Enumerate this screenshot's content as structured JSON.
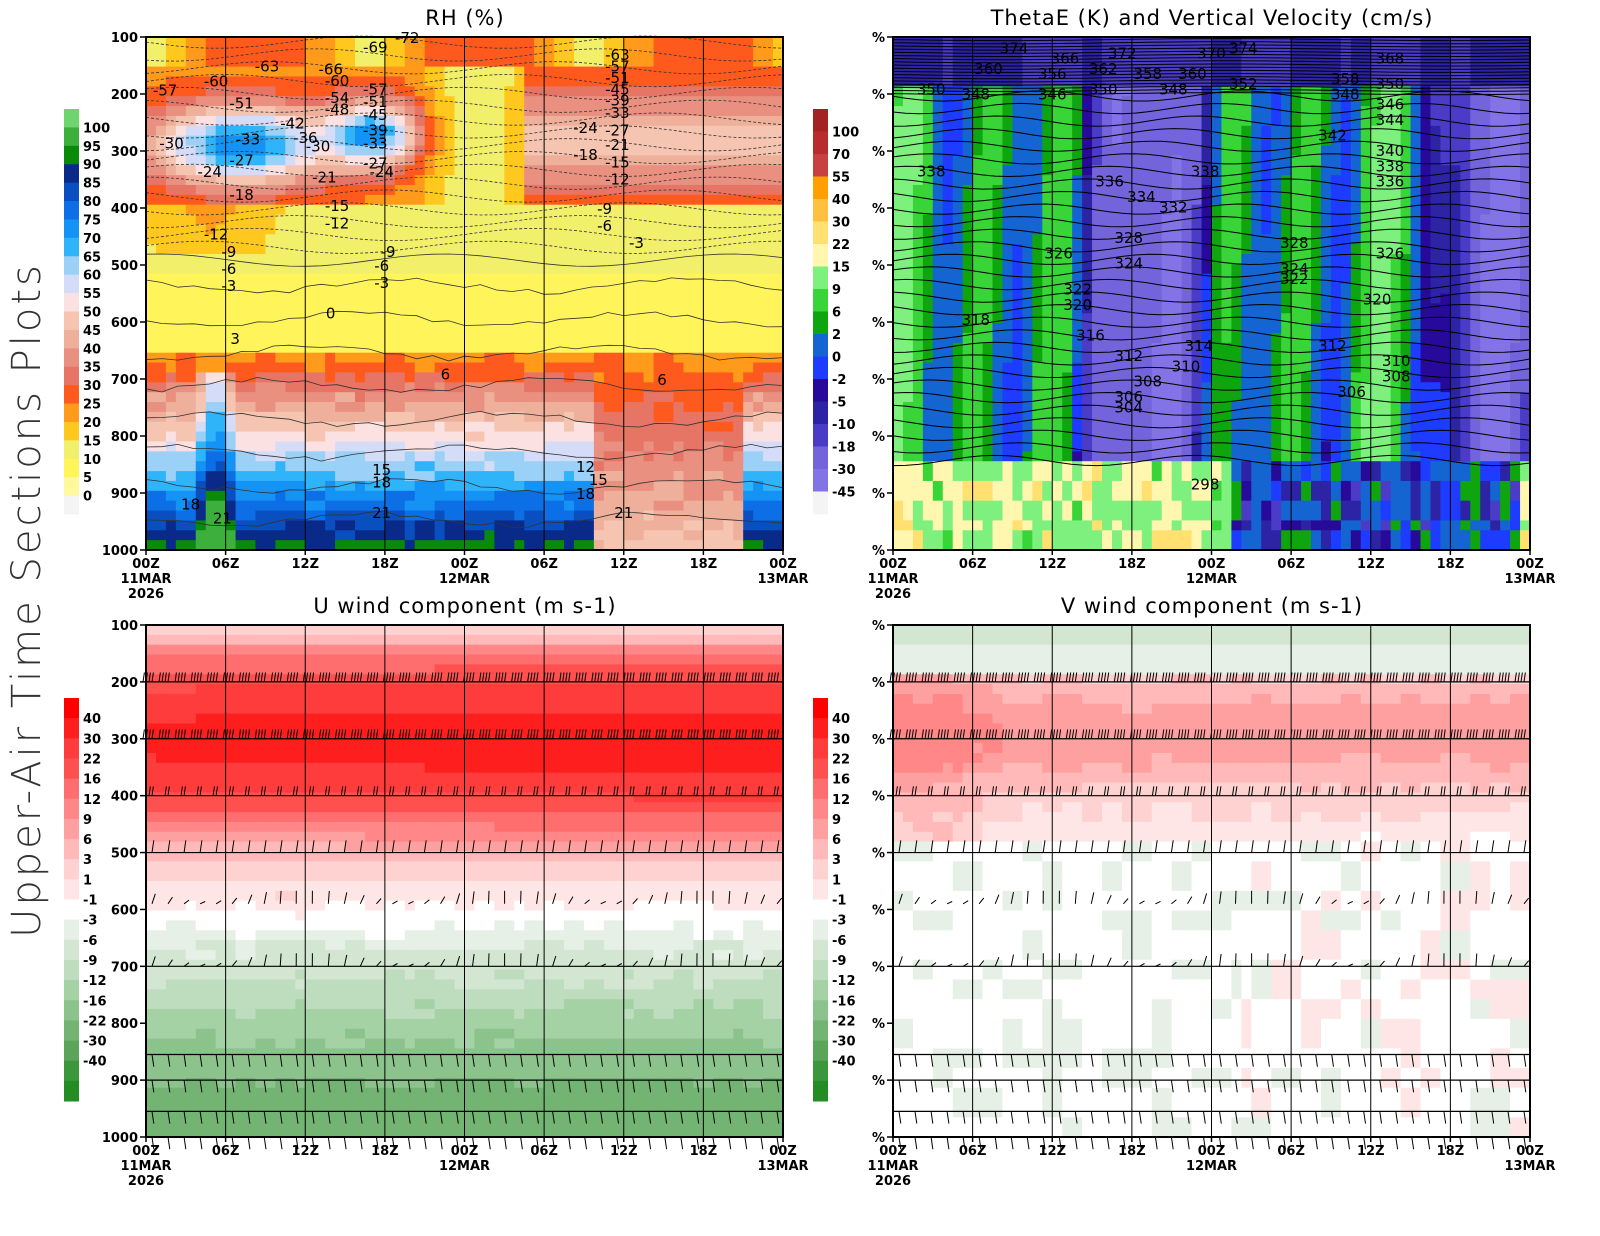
{
  "page": {
    "side_title": "Upper-Air Time Sections Plots"
  },
  "chart_data": [
    {
      "id": "rh",
      "type": "heatmap",
      "title": "RH (%)",
      "xlabel": "",
      "ylabel": "",
      "y_axis": {
        "ticks": [
          "100",
          "200",
          "300",
          "400",
          "500",
          "600",
          "700",
          "800",
          "900",
          "1000"
        ],
        "ylim": [
          100,
          1000
        ],
        "inverted": true
      },
      "x_axis": {
        "ticks": [
          "00Z",
          "06Z",
          "12Z",
          "18Z",
          "00Z",
          "06Z",
          "12Z",
          "18Z",
          "00Z"
        ],
        "date_labels": [
          {
            "at": 0,
            "text": "11MAR"
          },
          {
            "at": 4,
            "text": "12MAR"
          },
          {
            "at": 8,
            "text": "13MAR"
          }
        ],
        "year_label": "2026"
      },
      "colorbar": {
        "levels": [
          "100",
          "95",
          "90",
          "85",
          "80",
          "75",
          "70",
          "65",
          "60",
          "55",
          "50",
          "45",
          "40",
          "35",
          "30",
          "25",
          "20",
          "15",
          "10",
          "5",
          "0"
        ],
        "colors": [
          "#6ed46e",
          "#3daf3d",
          "#0a8a0a",
          "#0a2a8a",
          "#0a4fbf",
          "#0d6fe6",
          "#1493f5",
          "#2fb4fa",
          "#9bd0f7",
          "#d5dcf7",
          "#fbe1e1",
          "#f5c5b2",
          "#eeb09a",
          "#e99080",
          "#e67566",
          "#ff5a1e",
          "#ff9a1a",
          "#ffc81f",
          "#f2ef6a",
          "#fff45a",
          "#fff89c",
          "#f4f4f4"
        ]
      },
      "contour_overlay": "temperature (C)",
      "contour_labels": [
        {
          "t": 0.03,
          "p": 192,
          "v": "-57"
        },
        {
          "t": 0.11,
          "p": 176,
          "v": "-60"
        },
        {
          "t": 0.19,
          "p": 150,
          "v": "-63"
        },
        {
          "t": 0.15,
          "p": 215,
          "v": "-51"
        },
        {
          "t": 0.04,
          "p": 285,
          "v": "-30"
        },
        {
          "t": 0.16,
          "p": 278,
          "v": "-33"
        },
        {
          "t": 0.23,
          "p": 250,
          "v": "-42"
        },
        {
          "t": 0.15,
          "p": 315,
          "v": "-27"
        },
        {
          "t": 0.1,
          "p": 335,
          "v": "-24"
        },
        {
          "t": 0.15,
          "p": 375,
          "v": "-18"
        },
        {
          "t": 0.11,
          "p": 445,
          "v": "-12"
        },
        {
          "t": 0.13,
          "p": 475,
          "v": "-9"
        },
        {
          "t": 0.13,
          "p": 505,
          "v": "-6"
        },
        {
          "t": 0.13,
          "p": 535,
          "v": "-3"
        },
        {
          "t": 0.29,
          "p": 155,
          "v": "-66"
        },
        {
          "t": 0.36,
          "p": 117,
          "v": "-69"
        },
        {
          "t": 0.3,
          "p": 175,
          "v": "-60"
        },
        {
          "t": 0.3,
          "p": 205,
          "v": "-54"
        },
        {
          "t": 0.3,
          "p": 225,
          "v": "-48"
        },
        {
          "t": 0.36,
          "p": 190,
          "v": "-57"
        },
        {
          "t": 0.36,
          "p": 212,
          "v": "-51"
        },
        {
          "t": 0.36,
          "p": 235,
          "v": "-45"
        },
        {
          "t": 0.36,
          "p": 262,
          "v": "-39"
        },
        {
          "t": 0.36,
          "p": 285,
          "v": "-33"
        },
        {
          "t": 0.36,
          "p": 320,
          "v": "-27"
        },
        {
          "t": 0.25,
          "p": 275,
          "v": "-36"
        },
        {
          "t": 0.27,
          "p": 290,
          "v": "-30"
        },
        {
          "t": 0.28,
          "p": 345,
          "v": "-21"
        },
        {
          "t": 0.37,
          "p": 335,
          "v": "-24"
        },
        {
          "t": 0.3,
          "p": 395,
          "v": "-15"
        },
        {
          "t": 0.3,
          "p": 425,
          "v": "-12"
        },
        {
          "t": 0.38,
          "p": 475,
          "v": "-9"
        },
        {
          "t": 0.37,
          "p": 500,
          "v": "-6"
        },
        {
          "t": 0.37,
          "p": 530,
          "v": "-3"
        },
        {
          "t": 0.41,
          "p": 100,
          "v": "-72"
        },
        {
          "t": 0.29,
          "p": 583,
          "v": "0"
        },
        {
          "t": 0.14,
          "p": 628,
          "v": "3"
        },
        {
          "t": 0.47,
          "p": 690,
          "v": "6"
        },
        {
          "t": 0.81,
          "p": 700,
          "v": "6"
        },
        {
          "t": 0.37,
          "p": 858,
          "v": "15"
        },
        {
          "t": 0.37,
          "p": 880,
          "v": "18"
        },
        {
          "t": 0.37,
          "p": 933,
          "v": "21"
        },
        {
          "t": 0.07,
          "p": 918,
          "v": "18"
        },
        {
          "t": 0.12,
          "p": 943,
          "v": "21"
        },
        {
          "t": 0.69,
          "p": 853,
          "v": "12"
        },
        {
          "t": 0.71,
          "p": 875,
          "v": "15"
        },
        {
          "t": 0.69,
          "p": 900,
          "v": "18"
        },
        {
          "t": 0.75,
          "p": 933,
          "v": "21"
        },
        {
          "t": 0.74,
          "p": 130,
          "v": "-63"
        },
        {
          "t": 0.74,
          "p": 150,
          "v": "-57"
        },
        {
          "t": 0.74,
          "p": 170,
          "v": "-51"
        },
        {
          "t": 0.74,
          "p": 190,
          "v": "-45"
        },
        {
          "t": 0.74,
          "p": 210,
          "v": "-39"
        },
        {
          "t": 0.74,
          "p": 232,
          "v": "-33"
        },
        {
          "t": 0.74,
          "p": 262,
          "v": "-27"
        },
        {
          "t": 0.69,
          "p": 258,
          "v": "-24"
        },
        {
          "t": 0.74,
          "p": 288,
          "v": "-21"
        },
        {
          "t": 0.69,
          "p": 305,
          "v": "-18"
        },
        {
          "t": 0.74,
          "p": 318,
          "v": "-15"
        },
        {
          "t": 0.74,
          "p": 348,
          "v": "-12"
        },
        {
          "t": 0.72,
          "p": 400,
          "v": "-9"
        },
        {
          "t": 0.72,
          "p": 430,
          "v": "-6"
        },
        {
          "t": 0.77,
          "p": 460,
          "v": "-3"
        }
      ]
    },
    {
      "id": "thetae",
      "type": "heatmap",
      "title": "ThetaE (K) and Vertical Velocity (cm/s)",
      "xlabel": "",
      "ylabel": "",
      "y_axis": {
        "ticks": [
          "%",
          "%",
          "%",
          "%",
          "%",
          "%",
          "%",
          "%",
          "%",
          "%"
        ],
        "inverted": true
      },
      "x_axis": {
        "ticks": [
          "00Z",
          "06Z",
          "12Z",
          "18Z",
          "00Z",
          "06Z",
          "12Z",
          "18Z",
          "00Z"
        ],
        "date_labels": [
          {
            "at": 0,
            "text": "11MAR"
          },
          {
            "at": 4,
            "text": "12MAR"
          },
          {
            "at": 8,
            "text": "13MAR"
          }
        ],
        "year_label": "2026"
      },
      "colorbar": {
        "levels": [
          "100",
          "70",
          "55",
          "40",
          "30",
          "22",
          "15",
          "9",
          "6",
          "2",
          "0",
          "-2",
          "-5",
          "-10",
          "-18",
          "-30",
          "-45"
        ],
        "colors": [
          "#a52222",
          "#b82c2c",
          "#c94040",
          "#ff9f00",
          "#ffc040",
          "#ffe070",
          "#fff6b0",
          "#7ef07e",
          "#38d438",
          "#0fa50f",
          "#1464d2",
          "#1e3cff",
          "#280a9b",
          "#2d23a5",
          "#4b3cc8",
          "#7364dc",
          "#8273e6",
          "#f4f4f4"
        ]
      },
      "contour_overlay": "theta-e (K)",
      "contour_labels": [
        {
          "t": 0.19,
          "p": 0.02,
          "v": "374"
        },
        {
          "t": 0.27,
          "p": 0.04,
          "v": "366"
        },
        {
          "t": 0.36,
          "p": 0.03,
          "v": "372"
        },
        {
          "t": 0.5,
          "p": 0.03,
          "v": "370"
        },
        {
          "t": 0.55,
          "p": 0.02,
          "v": "374"
        },
        {
          "t": 0.15,
          "p": 0.06,
          "v": "360"
        },
        {
          "t": 0.25,
          "p": 0.07,
          "v": "356"
        },
        {
          "t": 0.33,
          "p": 0.06,
          "v": "362"
        },
        {
          "t": 0.4,
          "p": 0.07,
          "v": "358"
        },
        {
          "t": 0.47,
          "p": 0.07,
          "v": "360"
        },
        {
          "t": 0.06,
          "p": 0.1,
          "v": "350"
        },
        {
          "t": 0.13,
          "p": 0.11,
          "v": "348"
        },
        {
          "t": 0.25,
          "p": 0.11,
          "v": "346"
        },
        {
          "t": 0.33,
          "p": 0.1,
          "v": "350"
        },
        {
          "t": 0.44,
          "p": 0.1,
          "v": "348"
        },
        {
          "t": 0.55,
          "p": 0.09,
          "v": "352"
        },
        {
          "t": 0.78,
          "p": 0.04,
          "v": "368"
        },
        {
          "t": 0.71,
          "p": 0.08,
          "v": "358"
        },
        {
          "t": 0.71,
          "p": 0.11,
          "v": "348"
        },
        {
          "t": 0.78,
          "p": 0.09,
          "v": "350"
        },
        {
          "t": 0.78,
          "p": 0.13,
          "v": "346"
        },
        {
          "t": 0.78,
          "p": 0.16,
          "v": "344"
        },
        {
          "t": 0.69,
          "p": 0.19,
          "v": "342"
        },
        {
          "t": 0.78,
          "p": 0.22,
          "v": "340"
        },
        {
          "t": 0.78,
          "p": 0.25,
          "v": "338"
        },
        {
          "t": 0.78,
          "p": 0.28,
          "v": "336"
        },
        {
          "t": 0.06,
          "p": 0.26,
          "v": "338"
        },
        {
          "t": 0.34,
          "p": 0.28,
          "v": "336"
        },
        {
          "t": 0.39,
          "p": 0.31,
          "v": "334"
        },
        {
          "t": 0.44,
          "p": 0.33,
          "v": "332"
        },
        {
          "t": 0.49,
          "p": 0.26,
          "v": "338"
        },
        {
          "t": 0.37,
          "p": 0.39,
          "v": "328"
        },
        {
          "t": 0.63,
          "p": 0.4,
          "v": "328"
        },
        {
          "t": 0.26,
          "p": 0.42,
          "v": "326"
        },
        {
          "t": 0.37,
          "p": 0.44,
          "v": "324"
        },
        {
          "t": 0.78,
          "p": 0.42,
          "v": "326"
        },
        {
          "t": 0.63,
          "p": 0.45,
          "v": "324"
        },
        {
          "t": 0.63,
          "p": 0.47,
          "v": "322"
        },
        {
          "t": 0.29,
          "p": 0.49,
          "v": "322"
        },
        {
          "t": 0.29,
          "p": 0.52,
          "v": "320"
        },
        {
          "t": 0.76,
          "p": 0.51,
          "v": "320"
        },
        {
          "t": 0.13,
          "p": 0.55,
          "v": "318"
        },
        {
          "t": 0.31,
          "p": 0.58,
          "v": "316"
        },
        {
          "t": 0.48,
          "p": 0.6,
          "v": "314"
        },
        {
          "t": 0.37,
          "p": 0.62,
          "v": "312"
        },
        {
          "t": 0.69,
          "p": 0.6,
          "v": "312"
        },
        {
          "t": 0.46,
          "p": 0.64,
          "v": "310"
        },
        {
          "t": 0.79,
          "p": 0.63,
          "v": "310"
        },
        {
          "t": 0.4,
          "p": 0.67,
          "v": "308"
        },
        {
          "t": 0.79,
          "p": 0.66,
          "v": "308"
        },
        {
          "t": 0.37,
          "p": 0.7,
          "v": "306"
        },
        {
          "t": 0.72,
          "p": 0.69,
          "v": "306"
        },
        {
          "t": 0.37,
          "p": 0.72,
          "v": "304"
        },
        {
          "t": 0.49,
          "p": 0.87,
          "v": "298"
        }
      ]
    },
    {
      "id": "u_wind",
      "type": "heatmap",
      "title": "U wind component (m s-1)",
      "xlabel": "",
      "ylabel": "",
      "y_axis": {
        "ticks": [
          "100",
          "200",
          "300",
          "400",
          "500",
          "600",
          "700",
          "800",
          "900",
          "1000"
        ],
        "ylim": [
          100,
          1000
        ],
        "inverted": true
      },
      "x_axis": {
        "ticks": [
          "00Z",
          "06Z",
          "12Z",
          "18Z",
          "00Z",
          "06Z",
          "12Z",
          "18Z",
          "00Z"
        ],
        "date_labels": [
          {
            "at": 0,
            "text": "11MAR"
          },
          {
            "at": 4,
            "text": "12MAR"
          },
          {
            "at": 8,
            "text": "13MAR"
          }
        ],
        "year_label": "2026"
      },
      "colorbar": {
        "levels": [
          "40",
          "30",
          "22",
          "16",
          "12",
          "9",
          "6",
          "3",
          "1",
          "-1",
          "-3",
          "-6",
          "-9",
          "-12",
          "-16",
          "-22",
          "-30",
          "-40"
        ],
        "colors": [
          "#ff0000",
          "#ff1e1e",
          "#ff3c3c",
          "#ff5050",
          "#ff6e6e",
          "#ff8787",
          "#ffa0a0",
          "#ffb9b9",
          "#ffd2d2",
          "#ffe6e6",
          "#ffffff",
          "#e6f0e6",
          "#d2e6d2",
          "#bedcbe",
          "#a5d2a5",
          "#8cc38c",
          "#73b473",
          "#5aa55a",
          "#3c963c",
          "#238c23"
        ]
      },
      "barb_levels_hpa": [
        200,
        300,
        400,
        500,
        590,
        700,
        855,
        900,
        955,
        1000
      ],
      "profile": {
        "jet_core_hpa": [
          200,
          400
        ],
        "max_value": 40,
        "low_level_min": -16
      }
    },
    {
      "id": "v_wind",
      "type": "heatmap",
      "title": "V wind component (m s-1)",
      "xlabel": "",
      "ylabel": "",
      "y_axis": {
        "ticks": [
          "%",
          "%",
          "%",
          "%",
          "%",
          "%",
          "%",
          "%",
          "%",
          "%"
        ],
        "inverted": true
      },
      "x_axis": {
        "ticks": [
          "00Z",
          "06Z",
          "12Z",
          "18Z",
          "00Z",
          "06Z",
          "12Z",
          "18Z",
          "00Z"
        ],
        "date_labels": [
          {
            "at": 0,
            "text": "11MAR"
          },
          {
            "at": 4,
            "text": "12MAR"
          },
          {
            "at": 8,
            "text": "13MAR"
          }
        ],
        "year_label": "2026"
      },
      "colorbar": {
        "levels": [
          "40",
          "30",
          "22",
          "16",
          "12",
          "9",
          "6",
          "3",
          "1",
          "-1",
          "-3",
          "-6",
          "-9",
          "-12",
          "-16",
          "-22",
          "-30",
          "-40"
        ],
        "colors": [
          "#ff0000",
          "#ff1e1e",
          "#ff3c3c",
          "#ff5050",
          "#ff6e6e",
          "#ff8787",
          "#ffa0a0",
          "#ffb9b9",
          "#ffd2d2",
          "#ffe6e6",
          "#ffffff",
          "#e6f0e6",
          "#d2e6d2",
          "#bedcbe",
          "#a5d2a5",
          "#8cc38c",
          "#73b473",
          "#5aa55a",
          "#3c963c",
          "#238c23"
        ]
      },
      "barb_levels_hpa": [
        200,
        300,
        400,
        500,
        590,
        700,
        855,
        900,
        955,
        1000
      ],
      "profile": {
        "max_value": 16,
        "min_value": -6
      }
    }
  ]
}
